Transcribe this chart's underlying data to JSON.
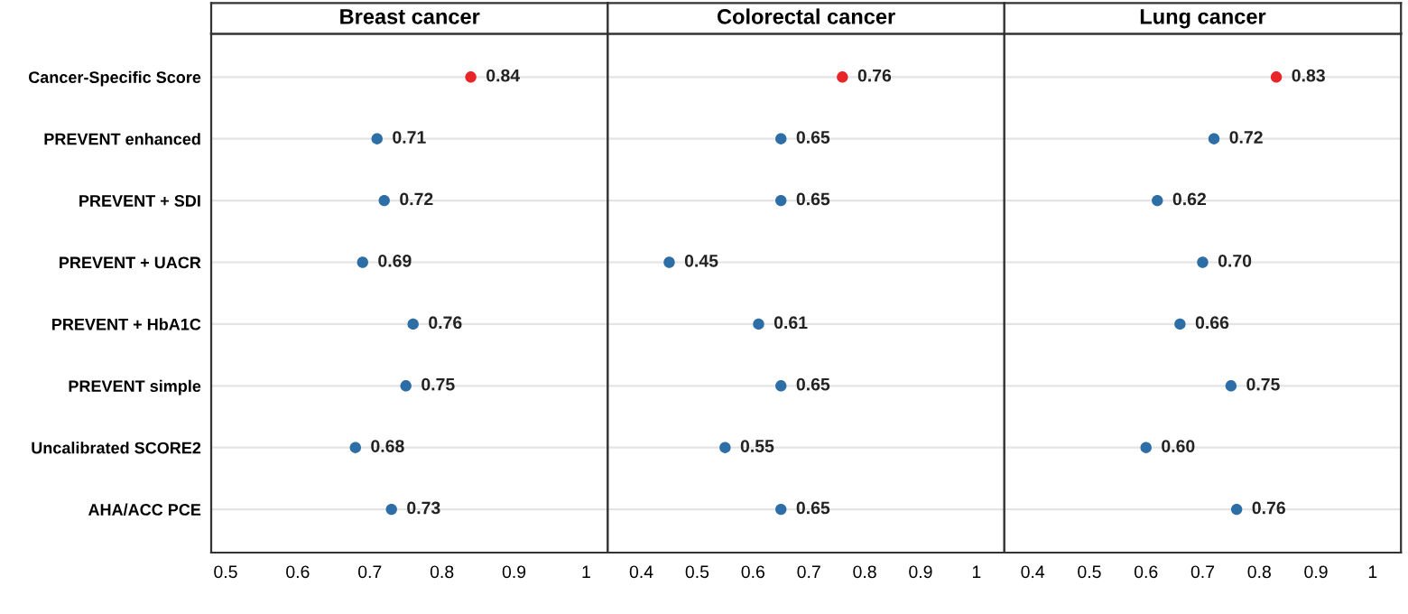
{
  "chart_data": [
    {
      "type": "scatter",
      "orientation": "horizontal",
      "title": "Breast cancer",
      "categories": [
        "Cancer-Specific Score",
        "PREVENT enhanced",
        "PREVENT + SDI",
        "PREVENT + UACR",
        "PREVENT + HbA1C",
        "PREVENT simple",
        "Uncalibrated SCORE2",
        "AHA/ACC PCE"
      ],
      "values": [
        0.84,
        0.71,
        0.72,
        0.69,
        0.76,
        0.75,
        0.68,
        0.73
      ],
      "value_labels": [
        "0.84",
        "0.71",
        "0.72",
        "0.69",
        "0.76",
        "0.75",
        "0.68",
        "0.73"
      ],
      "colors": [
        "#e8262a",
        "#2e6ea6",
        "#2e6ea6",
        "#2e6ea6",
        "#2e6ea6",
        "#2e6ea6",
        "#2e6ea6",
        "#2e6ea6"
      ],
      "xlim": [
        0.48,
        1.03
      ],
      "xticks": [
        0.5,
        0.6,
        0.7,
        0.8,
        0.9,
        1
      ],
      "grid": "y",
      "marker": "circle"
    },
    {
      "type": "scatter",
      "orientation": "horizontal",
      "title": "Colorectal cancer",
      "values": [
        0.76,
        0.65,
        0.65,
        0.45,
        0.61,
        0.65,
        0.55,
        0.65
      ],
      "value_labels": [
        "0.76",
        "0.65",
        "0.65",
        "0.45",
        "0.61",
        "0.65",
        "0.55",
        "0.65"
      ],
      "colors": [
        "#e8262a",
        "#2e6ea6",
        "#2e6ea6",
        "#2e6ea6",
        "#2e6ea6",
        "#2e6ea6",
        "#2e6ea6",
        "#2e6ea6"
      ],
      "xlim": [
        0.34,
        1.05
      ],
      "xticks": [
        0.4,
        0.5,
        0.6,
        0.7,
        0.8,
        0.9,
        1
      ],
      "grid": "y",
      "marker": "circle",
      "tick_labels": "x"
    },
    {
      "type": "scatter",
      "orientation": "horizontal",
      "title": "Lung cancer",
      "values": [
        0.83,
        0.72,
        0.62,
        0.7,
        0.66,
        0.75,
        0.6,
        0.76
      ],
      "value_labels": [
        "0.83",
        "0.72",
        "0.62",
        "0.70",
        "0.66",
        "0.75",
        "0.60",
        "0.76"
      ],
      "colors": [
        "#e8262a",
        "#2e6ea6",
        "#2e6ea6",
        "#2e6ea6",
        "#2e6ea6",
        "#2e6ea6",
        "#2e6ea6",
        "#2e6ea6"
      ],
      "xlim": [
        0.35,
        1.05
      ],
      "xticks": [
        0.4,
        0.5,
        0.6,
        0.7,
        0.8,
        0.9,
        1
      ],
      "grid": "y",
      "marker": "circle",
      "tick_labels": "x"
    }
  ]
}
